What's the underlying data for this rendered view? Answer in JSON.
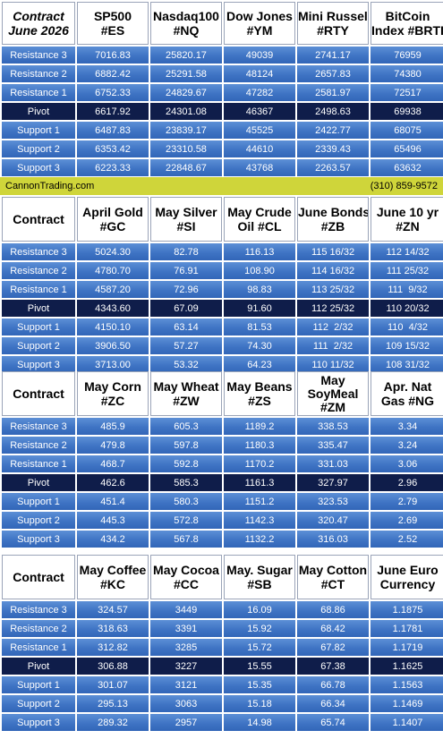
{
  "banner": {
    "site": "CannonTrading.com",
    "phone": "(310) 859-9572"
  },
  "row_labels": [
    "Resistance 3",
    "Resistance 2",
    "Resistance 1",
    "Pivot",
    "Support 1",
    "Support 2",
    "Support 3"
  ],
  "sections": [
    {
      "header_label_line1": "Contract",
      "header_label_line2": "June 2026",
      "contracts": [
        {
          "line1": "SP500",
          "line2": "#ES"
        },
        {
          "line1": "Nasdaq100",
          "line2": "#NQ"
        },
        {
          "line1": "Dow Jones",
          "line2": "#YM"
        },
        {
          "line1": "Mini Russell",
          "line2": "#RTY"
        },
        {
          "line1": "BitCoin",
          "line2": "Index #BRTI"
        }
      ],
      "rows": [
        [
          "7016.83",
          "25820.17",
          "49039",
          "2741.17",
          "76959"
        ],
        [
          "6882.42",
          "25291.58",
          "48124",
          "2657.83",
          "74380"
        ],
        [
          "6752.33",
          "24829.67",
          "47282",
          "2581.97",
          "72517"
        ],
        [
          "6617.92",
          "24301.08",
          "46367",
          "2498.63",
          "69938"
        ],
        [
          "6487.83",
          "23839.17",
          "45525",
          "2422.77",
          "68075"
        ],
        [
          "6353.42",
          "23310.58",
          "44610",
          "2339.43",
          "65496"
        ],
        [
          "6223.33",
          "22848.67",
          "43768",
          "2263.57",
          "63632"
        ]
      ]
    },
    {
      "header_label_line1": "Contract",
      "header_label_line2": "",
      "contracts": [
        {
          "line1": "April Gold",
          "line2": "#GC"
        },
        {
          "line1": "May Silver",
          "line2": "#SI"
        },
        {
          "line1": "May Crude",
          "line2": "Oil #CL"
        },
        {
          "line1": "June Bonds",
          "line2": "#ZB"
        },
        {
          "line1": "June 10 yr",
          "line2": "#ZN"
        }
      ],
      "rows": [
        [
          "5024.30",
          "82.78",
          "116.13",
          "115 16/32",
          "112 14/32"
        ],
        [
          "4780.70",
          "76.91",
          "108.90",
          "114 16/32",
          "111 25/32"
        ],
        [
          "4587.20",
          "72.96",
          "98.83",
          "113 25/32",
          "111  9/32"
        ],
        [
          "4343.60",
          "67.09",
          "91.60",
          "112 25/32",
          "110 20/32"
        ],
        [
          "4150.10",
          "63.14",
          "81.53",
          "112  2/32",
          "110  4/32"
        ],
        [
          "3906.50",
          "57.27",
          "74.30",
          "111  2/32",
          "109 15/32"
        ],
        [
          "3713.00",
          "53.32",
          "64.23",
          "110 11/32",
          "108 31/32"
        ]
      ]
    },
    {
      "header_label_line1": "Contract",
      "header_label_line2": "",
      "contracts": [
        {
          "line1": "May Corn",
          "line2": "#ZC"
        },
        {
          "line1": "May  Wheat",
          "line2": "#ZW"
        },
        {
          "line1": "May Beans",
          "line2": "#ZS"
        },
        {
          "line1": "May",
          "line2": "SoyMeal",
          "line3": "#ZM"
        },
        {
          "line1": "Apr. Nat",
          "line2": "Gas #NG"
        }
      ],
      "rows": [
        [
          "485.9",
          "605.3",
          "1189.2",
          "338.53",
          "3.34"
        ],
        [
          "479.8",
          "597.8",
          "1180.3",
          "335.47",
          "3.24"
        ],
        [
          "468.7",
          "592.8",
          "1170.2",
          "331.03",
          "3.06"
        ],
        [
          "462.6",
          "585.3",
          "1161.3",
          "327.97",
          "2.96"
        ],
        [
          "451.4",
          "580.3",
          "1151.2",
          "323.53",
          "2.79"
        ],
        [
          "445.3",
          "572.8",
          "1142.3",
          "320.47",
          "2.69"
        ],
        [
          "434.2",
          "567.8",
          "1132.2",
          "316.03",
          "2.52"
        ]
      ]
    },
    {
      "header_label_line1": "Contract",
      "header_label_line2": "",
      "contracts": [
        {
          "line1": "May Coffee",
          "line2": "#KC"
        },
        {
          "line1": "May Cocoa",
          "line2": "#CC"
        },
        {
          "line1": "May. Sugar",
          "line2": "#SB"
        },
        {
          "line1": "May Cotton",
          "line2": "#CT"
        },
        {
          "line1": "June Euro",
          "line2": "Currency"
        }
      ],
      "rows": [
        [
          "324.57",
          "3449",
          "16.09",
          "68.86",
          "1.1875"
        ],
        [
          "318.63",
          "3391",
          "15.92",
          "68.42",
          "1.1781"
        ],
        [
          "312.82",
          "3285",
          "15.72",
          "67.82",
          "1.1719"
        ],
        [
          "306.88",
          "3227",
          "15.55",
          "67.38",
          "1.1625"
        ],
        [
          "301.07",
          "3121",
          "15.35",
          "66.78",
          "1.1563"
        ],
        [
          "295.13",
          "3063",
          "15.18",
          "66.34",
          "1.1469"
        ],
        [
          "289.32",
          "2957",
          "14.98",
          "65.74",
          "1.1407"
        ]
      ]
    }
  ]
}
